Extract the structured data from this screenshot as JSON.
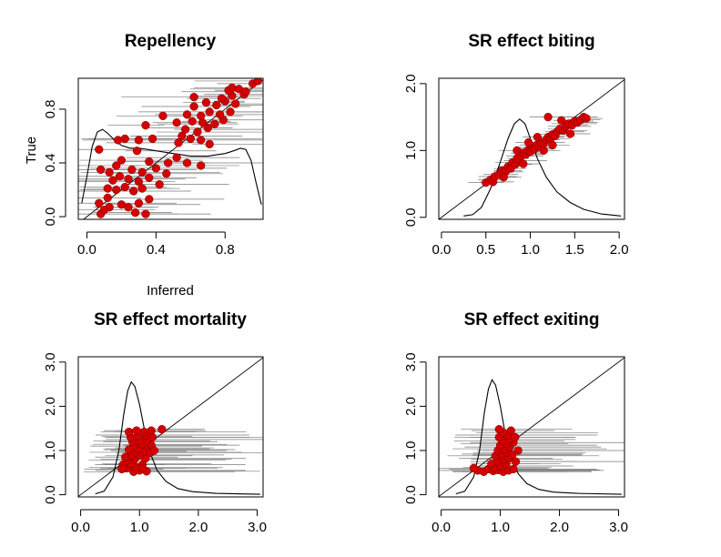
{
  "chart_data": [
    {
      "type": "scatter",
      "title": "Repellency",
      "xlabel": "Inferred",
      "ylabel": "True",
      "xlim": [
        -0.05,
        1.02
      ],
      "ylim": [
        -0.02,
        1.03
      ],
      "xticks": [
        0.0,
        0.4,
        0.8
      ],
      "xtick_labels": [
        "0.0",
        "0.4",
        "0.8"
      ],
      "yticks": [
        0.0,
        0.4,
        0.8
      ],
      "ytick_labels": [
        "0.0",
        "0.4",
        "0.8"
      ],
      "reference_line": "y = x",
      "points": [
        {
          "x": 0.08,
          "y": 0.02
        },
        {
          "x": 0.13,
          "y": 0.07
        },
        {
          "x": 0.07,
          "y": 0.1
        },
        {
          "x": 0.1,
          "y": 0.05
        },
        {
          "x": 0.12,
          "y": 0.14
        },
        {
          "x": 0.2,
          "y": 0.09
        },
        {
          "x": 0.24,
          "y": 0.07
        },
        {
          "x": 0.28,
          "y": 0.03
        },
        {
          "x": 0.34,
          "y": 0.02
        },
        {
          "x": 0.3,
          "y": 0.1
        },
        {
          "x": 0.36,
          "y": 0.13
        },
        {
          "x": 0.12,
          "y": 0.21
        },
        {
          "x": 0.17,
          "y": 0.2
        },
        {
          "x": 0.22,
          "y": 0.22
        },
        {
          "x": 0.27,
          "y": 0.19
        },
        {
          "x": 0.32,
          "y": 0.21
        },
        {
          "x": 0.15,
          "y": 0.27
        },
        {
          "x": 0.19,
          "y": 0.3
        },
        {
          "x": 0.24,
          "y": 0.28
        },
        {
          "x": 0.3,
          "y": 0.26
        },
        {
          "x": 0.36,
          "y": 0.29
        },
        {
          "x": 0.42,
          "y": 0.24
        },
        {
          "x": 0.08,
          "y": 0.35
        },
        {
          "x": 0.13,
          "y": 0.33
        },
        {
          "x": 0.17,
          "y": 0.38
        },
        {
          "x": 0.26,
          "y": 0.35
        },
        {
          "x": 0.32,
          "y": 0.33
        },
        {
          "x": 0.4,
          "y": 0.36
        },
        {
          "x": 0.46,
          "y": 0.32
        },
        {
          "x": 0.2,
          "y": 0.42
        },
        {
          "x": 0.36,
          "y": 0.41
        },
        {
          "x": 0.47,
          "y": 0.4
        },
        {
          "x": 0.52,
          "y": 0.44
        },
        {
          "x": 0.58,
          "y": 0.4
        },
        {
          "x": 0.66,
          "y": 0.38
        },
        {
          "x": 0.07,
          "y": 0.5
        },
        {
          "x": 0.29,
          "y": 0.49
        },
        {
          "x": 0.18,
          "y": 0.57
        },
        {
          "x": 0.22,
          "y": 0.58
        },
        {
          "x": 0.3,
          "y": 0.57
        },
        {
          "x": 0.38,
          "y": 0.58
        },
        {
          "x": 0.53,
          "y": 0.55
        },
        {
          "x": 0.55,
          "y": 0.6
        },
        {
          "x": 0.6,
          "y": 0.58
        },
        {
          "x": 0.66,
          "y": 0.57
        },
        {
          "x": 0.71,
          "y": 0.54
        },
        {
          "x": 0.57,
          "y": 0.65
        },
        {
          "x": 0.64,
          "y": 0.63
        },
        {
          "x": 0.7,
          "y": 0.66
        },
        {
          "x": 0.34,
          "y": 0.68
        },
        {
          "x": 0.52,
          "y": 0.7
        },
        {
          "x": 0.61,
          "y": 0.71
        },
        {
          "x": 0.67,
          "y": 0.7
        },
        {
          "x": 0.74,
          "y": 0.69
        },
        {
          "x": 0.79,
          "y": 0.72
        },
        {
          "x": 0.44,
          "y": 0.75
        },
        {
          "x": 0.58,
          "y": 0.76
        },
        {
          "x": 0.66,
          "y": 0.75
        },
        {
          "x": 0.71,
          "y": 0.78
        },
        {
          "x": 0.77,
          "y": 0.76
        },
        {
          "x": 0.83,
          "y": 0.78
        },
        {
          "x": 0.62,
          "y": 0.82
        },
        {
          "x": 0.69,
          "y": 0.85
        },
        {
          "x": 0.75,
          "y": 0.83
        },
        {
          "x": 0.8,
          "y": 0.86
        },
        {
          "x": 0.86,
          "y": 0.84
        },
        {
          "x": 0.62,
          "y": 0.89
        },
        {
          "x": 0.78,
          "y": 0.88
        },
        {
          "x": 0.84,
          "y": 0.9
        },
        {
          "x": 0.91,
          "y": 0.91
        },
        {
          "x": 0.82,
          "y": 0.94
        },
        {
          "x": 0.88,
          "y": 0.95
        },
        {
          "x": 0.92,
          "y": 0.93
        },
        {
          "x": 0.96,
          "y": 0.99
        },
        {
          "x": 0.99,
          "y": 1.01
        },
        {
          "x": 0.84,
          "y": 0.96
        }
      ],
      "density_curve": [
        [
          -0.03,
          0.1
        ],
        [
          0.0,
          0.3
        ],
        [
          0.03,
          0.52
        ],
        [
          0.06,
          0.63
        ],
        [
          0.09,
          0.65
        ],
        [
          0.12,
          0.62
        ],
        [
          0.16,
          0.57
        ],
        [
          0.2,
          0.53
        ],
        [
          0.25,
          0.51
        ],
        [
          0.3,
          0.51
        ],
        [
          0.35,
          0.5
        ],
        [
          0.4,
          0.49
        ],
        [
          0.45,
          0.48
        ],
        [
          0.5,
          0.47
        ],
        [
          0.55,
          0.46
        ],
        [
          0.6,
          0.45
        ],
        [
          0.65,
          0.45
        ],
        [
          0.7,
          0.45
        ],
        [
          0.75,
          0.46
        ],
        [
          0.8,
          0.47
        ],
        [
          0.85,
          0.49
        ],
        [
          0.89,
          0.51
        ],
        [
          0.92,
          0.5
        ],
        [
          0.95,
          0.42
        ],
        [
          0.98,
          0.25
        ],
        [
          1.01,
          0.09
        ]
      ]
    },
    {
      "type": "scatter",
      "title": "SR effect biting",
      "xlabel": "",
      "ylabel": "",
      "xlim": [
        -0.03,
        2.06
      ],
      "ylim": [
        -0.03,
        2.08
      ],
      "xticks": [
        0.0,
        0.5,
        1.0,
        1.5,
        2.0
      ],
      "xtick_labels": [
        "0.0",
        "0.5",
        "1.0",
        "1.5",
        "2.0"
      ],
      "yticks": [
        0.0,
        1.0,
        2.0
      ],
      "ytick_labels": [
        "0.0",
        "1.0",
        "2.0"
      ],
      "reference_line": "y = x",
      "points": [
        {
          "x": 0.5,
          "y": 0.52
        },
        {
          "x": 0.55,
          "y": 0.56
        },
        {
          "x": 0.58,
          "y": 0.53
        },
        {
          "x": 0.6,
          "y": 0.61
        },
        {
          "x": 0.65,
          "y": 0.64
        },
        {
          "x": 0.68,
          "y": 0.7
        },
        {
          "x": 0.72,
          "y": 0.68
        },
        {
          "x": 0.75,
          "y": 0.76
        },
        {
          "x": 0.78,
          "y": 0.73
        },
        {
          "x": 0.8,
          "y": 0.82
        },
        {
          "x": 0.83,
          "y": 0.79
        },
        {
          "x": 0.85,
          "y": 0.88
        },
        {
          "x": 0.88,
          "y": 0.85
        },
        {
          "x": 0.9,
          "y": 0.92
        },
        {
          "x": 0.92,
          "y": 0.96
        },
        {
          "x": 0.95,
          "y": 0.94
        },
        {
          "x": 0.97,
          "y": 1.0
        },
        {
          "x": 1.0,
          "y": 0.98
        },
        {
          "x": 1.02,
          "y": 1.04
        },
        {
          "x": 1.05,
          "y": 1.02
        },
        {
          "x": 1.07,
          "y": 1.08
        },
        {
          "x": 1.1,
          "y": 1.06
        },
        {
          "x": 1.12,
          "y": 1.12
        },
        {
          "x": 1.15,
          "y": 1.1
        },
        {
          "x": 1.18,
          "y": 1.16
        },
        {
          "x": 1.2,
          "y": 1.2
        },
        {
          "x": 1.23,
          "y": 1.18
        },
        {
          "x": 1.25,
          "y": 1.24
        },
        {
          "x": 1.28,
          "y": 1.22
        },
        {
          "x": 1.3,
          "y": 1.28
        },
        {
          "x": 1.33,
          "y": 1.32
        },
        {
          "x": 1.37,
          "y": 1.3
        },
        {
          "x": 1.4,
          "y": 1.36
        },
        {
          "x": 1.43,
          "y": 1.4
        },
        {
          "x": 1.47,
          "y": 1.38
        },
        {
          "x": 1.5,
          "y": 1.44
        },
        {
          "x": 1.53,
          "y": 1.42
        },
        {
          "x": 1.57,
          "y": 1.46
        },
        {
          "x": 1.6,
          "y": 1.5
        },
        {
          "x": 1.63,
          "y": 1.48
        },
        {
          "x": 1.2,
          "y": 1.5
        },
        {
          "x": 1.35,
          "y": 1.45
        },
        {
          "x": 0.98,
          "y": 1.12
        },
        {
          "x": 1.08,
          "y": 1.2
        },
        {
          "x": 1.15,
          "y": 1.0
        },
        {
          "x": 0.85,
          "y": 1.0
        },
        {
          "x": 1.25,
          "y": 1.08
        },
        {
          "x": 0.7,
          "y": 0.6
        },
        {
          "x": 0.92,
          "y": 0.8
        },
        {
          "x": 1.45,
          "y": 1.25
        }
      ],
      "density_curve": [
        [
          0.25,
          0.02
        ],
        [
          0.35,
          0.04
        ],
        [
          0.45,
          0.15
        ],
        [
          0.55,
          0.42
        ],
        [
          0.65,
          0.78
        ],
        [
          0.75,
          1.18
        ],
        [
          0.82,
          1.4
        ],
        [
          0.88,
          1.47
        ],
        [
          0.94,
          1.4
        ],
        [
          1.0,
          1.18
        ],
        [
          1.08,
          0.88
        ],
        [
          1.18,
          0.6
        ],
        [
          1.3,
          0.38
        ],
        [
          1.45,
          0.22
        ],
        [
          1.6,
          0.12
        ],
        [
          1.8,
          0.05
        ],
        [
          2.02,
          0.02
        ]
      ]
    },
    {
      "type": "scatter",
      "title": "SR effect mortality",
      "xlabel": "",
      "ylabel": "",
      "xlim": [
        -0.04,
        3.1
      ],
      "ylim": [
        -0.05,
        3.12
      ],
      "xticks": [
        0.0,
        1.0,
        2.0,
        3.0
      ],
      "xtick_labels": [
        "0.0",
        "1.0",
        "2.0",
        "3.0"
      ],
      "yticks": [
        0.0,
        1.0,
        2.0,
        3.0
      ],
      "ytick_labels": [
        "0.0",
        "1.0",
        "2.0",
        "3.0"
      ],
      "reference_line": "y = x",
      "points": [
        {
          "x": 0.9,
          "y": 0.52
        },
        {
          "x": 1.0,
          "y": 0.55
        },
        {
          "x": 1.12,
          "y": 0.53
        },
        {
          "x": 0.78,
          "y": 0.6
        },
        {
          "x": 0.95,
          "y": 0.62
        },
        {
          "x": 0.72,
          "y": 0.68
        },
        {
          "x": 0.85,
          "y": 0.7
        },
        {
          "x": 1.05,
          "y": 0.68
        },
        {
          "x": 0.8,
          "y": 0.78
        },
        {
          "x": 0.92,
          "y": 0.8
        },
        {
          "x": 1.1,
          "y": 0.82
        },
        {
          "x": 0.86,
          "y": 0.88
        },
        {
          "x": 1.0,
          "y": 0.9
        },
        {
          "x": 0.93,
          "y": 0.96
        },
        {
          "x": 1.08,
          "y": 0.98
        },
        {
          "x": 0.98,
          "y": 1.04
        },
        {
          "x": 1.15,
          "y": 1.06
        },
        {
          "x": 0.9,
          "y": 1.1
        },
        {
          "x": 1.04,
          "y": 1.14
        },
        {
          "x": 1.2,
          "y": 1.12
        },
        {
          "x": 0.88,
          "y": 1.2
        },
        {
          "x": 1.0,
          "y": 1.22
        },
        {
          "x": 1.12,
          "y": 1.25
        },
        {
          "x": 0.85,
          "y": 1.3
        },
        {
          "x": 0.96,
          "y": 1.32
        },
        {
          "x": 1.1,
          "y": 1.35
        },
        {
          "x": 1.22,
          "y": 1.3
        },
        {
          "x": 0.82,
          "y": 1.42
        },
        {
          "x": 0.95,
          "y": 1.45
        },
        {
          "x": 1.08,
          "y": 1.42
        },
        {
          "x": 1.2,
          "y": 1.45
        },
        {
          "x": 1.38,
          "y": 1.48
        },
        {
          "x": 0.82,
          "y": 1.02
        },
        {
          "x": 1.18,
          "y": 0.95
        },
        {
          "x": 0.76,
          "y": 0.85
        },
        {
          "x": 1.25,
          "y": 1.0
        },
        {
          "x": 0.7,
          "y": 0.58
        },
        {
          "x": 1.05,
          "y": 0.6
        }
      ],
      "density_curve": [
        [
          0.25,
          0.02
        ],
        [
          0.4,
          0.08
        ],
        [
          0.55,
          0.4
        ],
        [
          0.65,
          1.0
        ],
        [
          0.73,
          1.8
        ],
        [
          0.8,
          2.35
        ],
        [
          0.86,
          2.55
        ],
        [
          0.92,
          2.45
        ],
        [
          1.0,
          2.05
        ],
        [
          1.08,
          1.5
        ],
        [
          1.18,
          0.95
        ],
        [
          1.3,
          0.55
        ],
        [
          1.45,
          0.3
        ],
        [
          1.65,
          0.14
        ],
        [
          1.9,
          0.07
        ],
        [
          2.3,
          0.03
        ],
        [
          3.05,
          0.01
        ]
      ]
    },
    {
      "type": "scatter",
      "title": "SR effect exiting",
      "xlabel": "",
      "ylabel": "",
      "xlim": [
        -0.04,
        3.1
      ],
      "ylim": [
        -0.05,
        3.12
      ],
      "xticks": [
        0.0,
        1.0,
        2.0,
        3.0
      ],
      "xtick_labels": [
        "0.0",
        "1.0",
        "2.0",
        "3.0"
      ],
      "yticks": [
        0.0,
        1.0,
        2.0,
        3.0
      ],
      "ytick_labels": [
        "0.0",
        "1.0",
        "2.0",
        "3.0"
      ],
      "reference_line": "y = x",
      "points": [
        {
          "x": 0.62,
          "y": 0.55
        },
        {
          "x": 0.72,
          "y": 0.52
        },
        {
          "x": 0.8,
          "y": 0.58
        },
        {
          "x": 0.88,
          "y": 0.54
        },
        {
          "x": 0.96,
          "y": 0.56
        },
        {
          "x": 1.05,
          "y": 0.52
        },
        {
          "x": 1.14,
          "y": 0.55
        },
        {
          "x": 1.22,
          "y": 0.58
        },
        {
          "x": 0.9,
          "y": 0.62
        },
        {
          "x": 1.0,
          "y": 0.65
        },
        {
          "x": 1.1,
          "y": 0.7
        },
        {
          "x": 0.95,
          "y": 0.75
        },
        {
          "x": 1.05,
          "y": 0.8
        },
        {
          "x": 1.15,
          "y": 0.82
        },
        {
          "x": 0.92,
          "y": 0.88
        },
        {
          "x": 1.02,
          "y": 0.92
        },
        {
          "x": 1.12,
          "y": 0.95
        },
        {
          "x": 1.2,
          "y": 0.9
        },
        {
          "x": 0.96,
          "y": 1.0
        },
        {
          "x": 1.06,
          "y": 1.04
        },
        {
          "x": 1.16,
          "y": 1.08
        },
        {
          "x": 1.0,
          "y": 1.12
        },
        {
          "x": 1.1,
          "y": 1.15
        },
        {
          "x": 1.22,
          "y": 1.18
        },
        {
          "x": 1.05,
          "y": 1.22
        },
        {
          "x": 1.15,
          "y": 1.25
        },
        {
          "x": 0.98,
          "y": 1.3
        },
        {
          "x": 1.12,
          "y": 1.35
        },
        {
          "x": 1.25,
          "y": 1.3
        },
        {
          "x": 1.05,
          "y": 1.4
        },
        {
          "x": 1.18,
          "y": 1.45
        },
        {
          "x": 0.98,
          "y": 1.48
        },
        {
          "x": 1.3,
          "y": 1.0
        },
        {
          "x": 1.26,
          "y": 0.75
        },
        {
          "x": 0.85,
          "y": 0.7
        },
        {
          "x": 0.55,
          "y": 0.6
        }
      ],
      "density_curve": [
        [
          0.25,
          0.02
        ],
        [
          0.4,
          0.08
        ],
        [
          0.55,
          0.4
        ],
        [
          0.65,
          1.0
        ],
        [
          0.73,
          1.85
        ],
        [
          0.8,
          2.4
        ],
        [
          0.86,
          2.6
        ],
        [
          0.92,
          2.48
        ],
        [
          1.0,
          2.0
        ],
        [
          1.08,
          1.4
        ],
        [
          1.18,
          0.85
        ],
        [
          1.3,
          0.48
        ],
        [
          1.45,
          0.25
        ],
        [
          1.65,
          0.12
        ],
        [
          1.9,
          0.06
        ],
        [
          2.3,
          0.03
        ],
        [
          3.05,
          0.01
        ]
      ]
    }
  ]
}
